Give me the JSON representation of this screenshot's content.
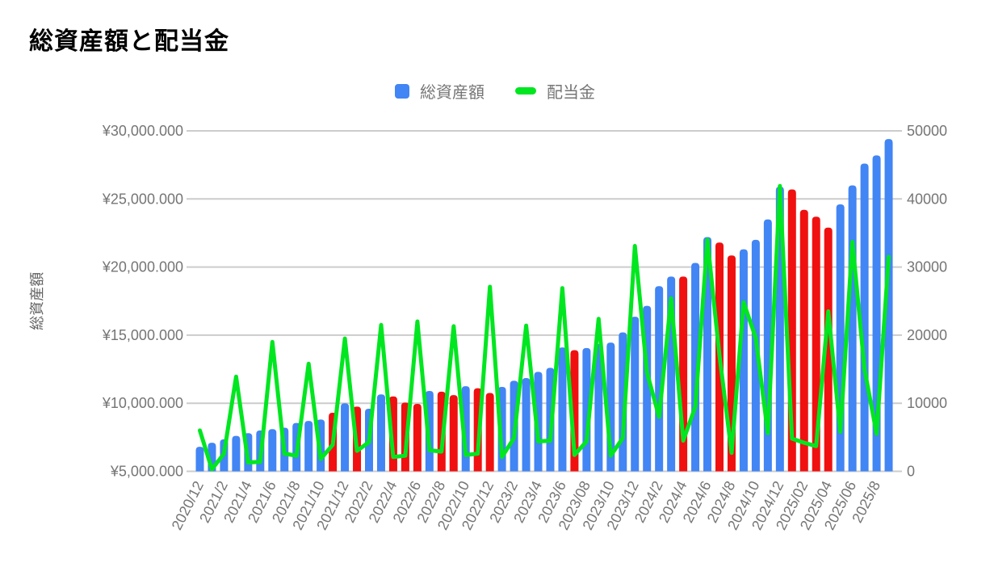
{
  "page": {
    "title": "総資産額と配当金"
  },
  "legend": {
    "items": [
      {
        "label": "総資産額",
        "swatch": "square",
        "color": "#4285f4"
      },
      {
        "label": "配当金",
        "swatch": "line",
        "color": "#00e620"
      }
    ]
  },
  "colors": {
    "bar_blue": "#4285f4",
    "bar_red": "#f01010",
    "line_green": "#00e620",
    "gridline": "#cccccc",
    "axis_text": "#757575",
    "axis_title_text": "#616161",
    "title_text": "#000000"
  },
  "chart_data": {
    "type": "bar",
    "subtype": "combo-bar-line",
    "title": "総資産額と配当金",
    "grid": true,
    "legend_position": "top",
    "categories": [
      "2020/12",
      "2021/1",
      "2021/2",
      "2021/3",
      "2021/4",
      "2021/5",
      "2021/6",
      "2021/7",
      "2021/8",
      "2021/9",
      "2021/10",
      "2021/11",
      "2021/12",
      "2022/1",
      "2022/2",
      "2022/3",
      "2022/4",
      "2022/5",
      "2022/6",
      "2022/7",
      "2022/8",
      "2022/9",
      "2022/10",
      "2022/11",
      "2022/12",
      "2023/1",
      "2023/2",
      "2023/3",
      "2023/4",
      "2023/5",
      "2023/6",
      "2023/7",
      "2023/8",
      "2023/9",
      "2023/10",
      "2023/11",
      "2023/12",
      "2024/1",
      "2024/2",
      "2024/3",
      "2024/4",
      "2024/5",
      "2024/6",
      "2024/7",
      "2024/8",
      "2024/9",
      "2024/10",
      "2024/11",
      "2024/12",
      "2025/1",
      "2025/2",
      "2025/3",
      "2025/4",
      "2025/5",
      "2025/6",
      "2025/7",
      "2025/8",
      "2025/9"
    ],
    "x_tick_labels": [
      "2020/12",
      "2021/2",
      "2021/4",
      "2021/6",
      "2021/8",
      "2021/10",
      "2021/12",
      "2022/2",
      "2022/4",
      "2022/6",
      "2022/8",
      "2022/10",
      "2022/12",
      "2023/2",
      "2023/4",
      "2023/6",
      "2023/08",
      "2023/10",
      "2023/12",
      "2024/2",
      "2024/4",
      "2024/6",
      "2024/8",
      "2024/10",
      "2024/12",
      "2025/02",
      "2025/04",
      "2025/06",
      "2025/8"
    ],
    "series": [
      {
        "name": "総資産額",
        "type": "bar",
        "axis": "left",
        "color": "#4285f4",
        "highlight_color": "#f01010",
        "red_indices": [
          11,
          13,
          16,
          17,
          18,
          20,
          21,
          23,
          24,
          31,
          40,
          43,
          44,
          49,
          50,
          51,
          52
        ],
        "values": [
          6800000,
          7100000,
          7350000,
          7600000,
          7800000,
          8000000,
          8100000,
          8200000,
          8550000,
          8700000,
          8800000,
          9300000,
          10000000,
          9750000,
          9600000,
          10650000,
          10500000,
          10050000,
          9950000,
          10900000,
          10850000,
          10600000,
          11250000,
          11100000,
          10750000,
          11200000,
          11650000,
          11850000,
          12300000,
          12600000,
          14100000,
          13900000,
          14050000,
          14350000,
          14450000,
          15200000,
          16350000,
          17150000,
          18600000,
          19300000,
          19300000,
          20300000,
          22200000,
          21800000,
          20850000,
          21300000,
          22000000,
          23500000,
          25900000,
          25700000,
          24200000,
          23700000,
          22900000,
          24600000,
          26000000,
          27600000,
          28200000,
          29400000
        ]
      },
      {
        "name": "配当金",
        "type": "line",
        "axis": "right",
        "color": "#00e620",
        "values": [
          6000,
          300,
          2600,
          13900,
          1300,
          1400,
          19000,
          2600,
          2300,
          15800,
          1800,
          3900,
          19500,
          3000,
          4300,
          21500,
          2100,
          2300,
          22000,
          3100,
          2900,
          21300,
          2400,
          2600,
          27100,
          2100,
          4900,
          21400,
          4400,
          4500,
          26900,
          2400,
          4400,
          22400,
          2300,
          4900,
          33100,
          14500,
          8000,
          25400,
          4500,
          9500,
          34000,
          17000,
          2700,
          24800,
          19600,
          5600,
          41900,
          4800,
          4200,
          3700,
          23500,
          5800,
          33700,
          15000,
          5500,
          31500
        ]
      }
    ],
    "left_axis": {
      "title": "総資産額",
      "min": 5000000,
      "max": 30000000,
      "tick_labels": [
        "¥30,000.000",
        "¥25,000.000",
        "¥20,000.000",
        "¥15,000.000",
        "¥10,000.000",
        "¥5,000.000"
      ]
    },
    "right_axis": {
      "min": 0,
      "max": 50000,
      "tick_labels": [
        "50000",
        "40000",
        "30000",
        "20000",
        "10000",
        "0"
      ]
    }
  }
}
